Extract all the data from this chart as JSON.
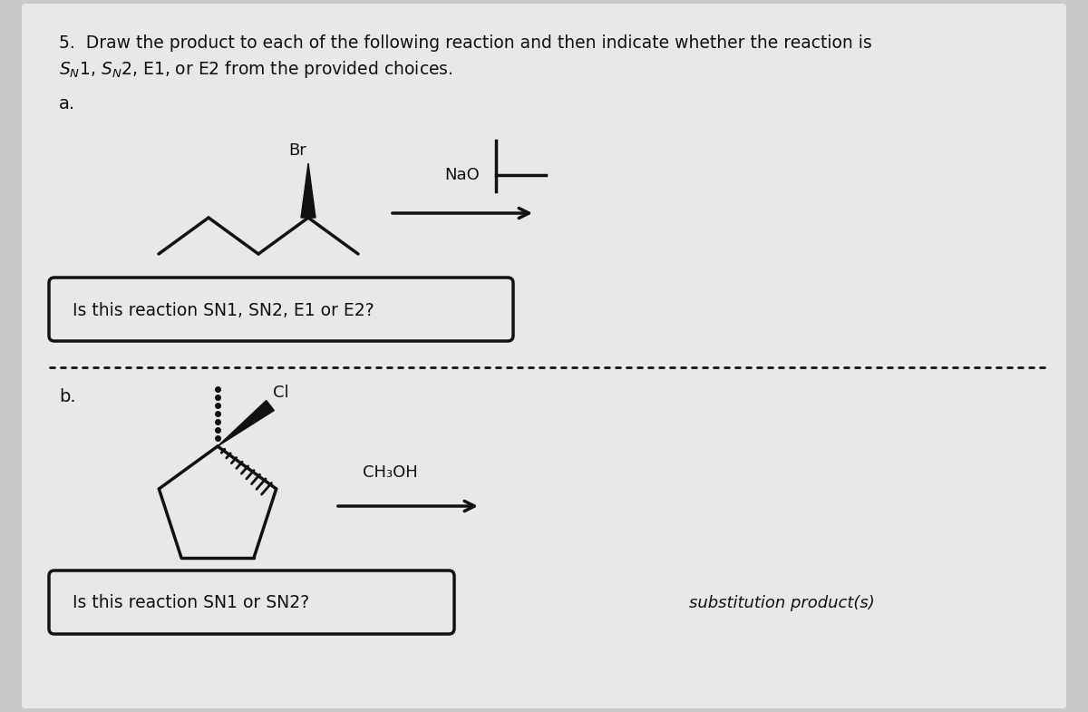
{
  "bg_color": "#c8c8c8",
  "paper_color": "#e6e6e6",
  "title_line1": "5.  Draw the product to each of the following reaction and then indicate whether the reaction is",
  "title_line2_sn1": "S",
  "title_line2_n1": "N",
  "title_line2_rest": "1, S",
  "title_line2_n2": "N",
  "title_line2_end": "2, E1, or E2 from the provided choices.",
  "label_a": "a.",
  "label_b": "b.",
  "question_a": "Is this reaction SN1, SN2, E1 or E2?",
  "question_b": "Is this reaction SN1 or SN2?",
  "reagent_a": "NaO",
  "reagent_b": "CH₃OH",
  "label_br": "Br",
  "label_cl": "Cl",
  "subst_product": "substitution product(s)",
  "text_color": "#111111",
  "line_color": "#111111"
}
